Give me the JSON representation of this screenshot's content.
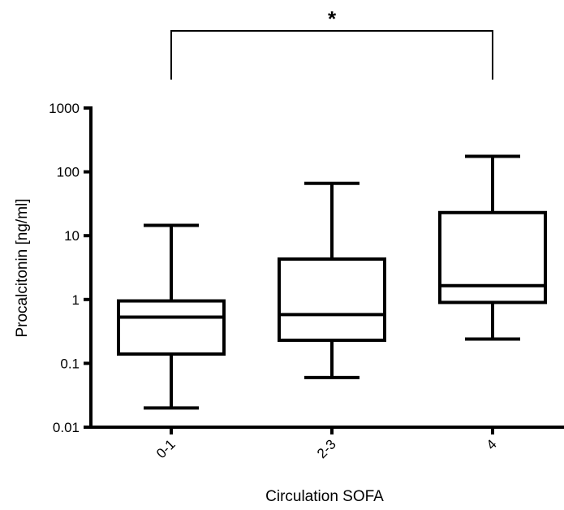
{
  "chart_data": {
    "type": "box",
    "xlabel": "Circulation SOFA",
    "ylabel": "Procalcitonin [ng/ml]",
    "yscale": "log",
    "ylim": [
      0.01,
      1000
    ],
    "yticks": [
      "0.01",
      "0.1",
      "1",
      "10",
      "100",
      "1000"
    ],
    "categories": [
      "0-1",
      "2-3",
      "4"
    ],
    "boxes": [
      {
        "category": "0-1",
        "min": 0.02,
        "q1": 0.14,
        "median": 0.53,
        "q3": 0.95,
        "max": 14.5
      },
      {
        "category": "2-3",
        "min": 0.06,
        "q1": 0.23,
        "median": 0.58,
        "q3": 4.3,
        "max": 66
      },
      {
        "category": "4",
        "min": 0.24,
        "q1": 0.9,
        "median": 1.65,
        "q3": 23,
        "max": 175
      }
    ],
    "significance": {
      "from": "0-1",
      "to": "4",
      "label": "*"
    },
    "color": "#000000",
    "grid": false
  }
}
